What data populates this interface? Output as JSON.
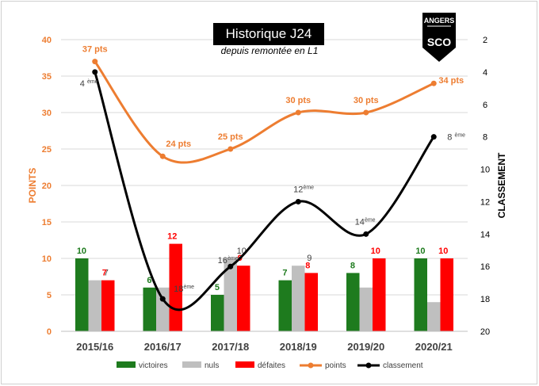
{
  "chart_data": {
    "type": "bar",
    "title": "Historique J24",
    "subtitle": "depuis remontée en L1",
    "categories": [
      "2015/16",
      "2016/17",
      "2017/18",
      "2018/19",
      "2019/20",
      "2020/21"
    ],
    "ylabel": "POINTS",
    "y2label": "CLASSEMENT",
    "ylim": [
      0,
      40
    ],
    "y2lim": [
      2,
      20
    ],
    "y2_reversed": true,
    "y_ticks": [
      "0",
      "5",
      "10",
      "15",
      "20",
      "25",
      "30",
      "35",
      "40"
    ],
    "y2_ticks": [
      "2",
      "4",
      "6",
      "8",
      "10",
      "12",
      "14",
      "16",
      "18",
      "20"
    ],
    "legend_position": "bottom",
    "series": [
      {
        "name": "victoires",
        "kind": "bar",
        "color": "#1e7b1e",
        "values": [
          10,
          6,
          5,
          7,
          8,
          10
        ],
        "labels": [
          "10",
          "6",
          "5",
          "7",
          "8",
          "10"
        ]
      },
      {
        "name": "nuls",
        "kind": "bar",
        "color": "#bfbfbf",
        "values": [
          7,
          6,
          10,
          9,
          6,
          4
        ],
        "labels": [
          "7",
          "6",
          "10",
          "9",
          "6",
          "4"
        ]
      },
      {
        "name": "défaites",
        "kind": "bar",
        "color": "#ff0000",
        "values": [
          7,
          12,
          9,
          8,
          10,
          10
        ],
        "labels": [
          "7",
          "12",
          "9",
          "8",
          "10",
          "10"
        ]
      },
      {
        "name": "points",
        "kind": "line",
        "color": "#ed7d31",
        "values": [
          37,
          24,
          25,
          30,
          30,
          34
        ],
        "labels": [
          "37 pts",
          "24 pts",
          "25 pts",
          "30 pts",
          "30 pts",
          "34 pts"
        ]
      },
      {
        "name": "classement",
        "kind": "line",
        "axis": "right",
        "color": "#000000",
        "values": [
          4,
          18,
          16,
          12,
          14,
          8
        ],
        "labels": [
          "4",
          "18",
          "16",
          "12",
          "14",
          "8"
        ],
        "label_suffix": "ème"
      }
    ]
  },
  "logo": {
    "text": "ANGERS",
    "initials": "SCO"
  }
}
